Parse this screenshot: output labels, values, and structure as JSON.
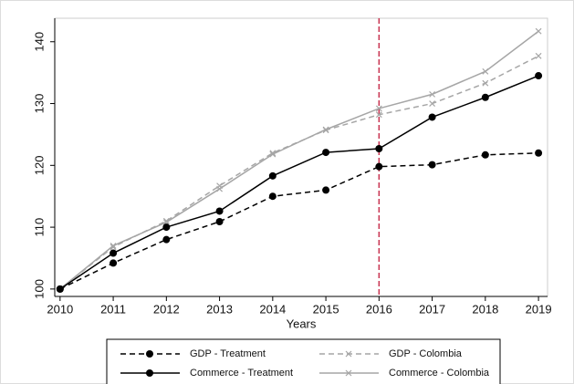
{
  "chart_data": {
    "type": "line",
    "x_label": "Years",
    "x": [
      2010,
      2011,
      2012,
      2013,
      2014,
      2015,
      2016,
      2017,
      2018,
      2019
    ],
    "series": [
      {
        "name": "GDP - Treatment",
        "color": "#000000",
        "dash": true,
        "marker": "dot",
        "values": [
          100,
          104.2,
          108,
          110.9,
          115,
          116,
          119.8,
          120.1,
          121.7,
          122
        ]
      },
      {
        "name": "GDP - Colombia",
        "color": "#a6a6a6",
        "dash": true,
        "marker": "x",
        "values": [
          100,
          106.8,
          111,
          116.7,
          122,
          125.7,
          128.2,
          130,
          133.3,
          137.7
        ]
      },
      {
        "name": "Commerce  - Treatment",
        "color": "#000000",
        "dash": false,
        "marker": "dot",
        "values": [
          100,
          105.8,
          110,
          112.6,
          118.3,
          122.1,
          122.7,
          127.8,
          131,
          134.5
        ]
      },
      {
        "name": "Commerce  - Colombia",
        "color": "#a6a6a6",
        "dash": false,
        "marker": "x",
        "values": [
          100,
          107,
          110.8,
          116.2,
          121.8,
          125.8,
          129.2,
          131.5,
          135.2,
          141.7
        ]
      }
    ],
    "vline": 2016,
    "vline_color": "#c8324f",
    "xlim": [
      2009.9,
      2019.17
    ],
    "ylim": [
      98.8,
      143.8
    ],
    "xticks": [
      2010,
      2011,
      2012,
      2013,
      2014,
      2015,
      2016,
      2017,
      2018,
      2019
    ],
    "yticks": [
      100,
      110,
      120,
      130,
      140
    ]
  }
}
